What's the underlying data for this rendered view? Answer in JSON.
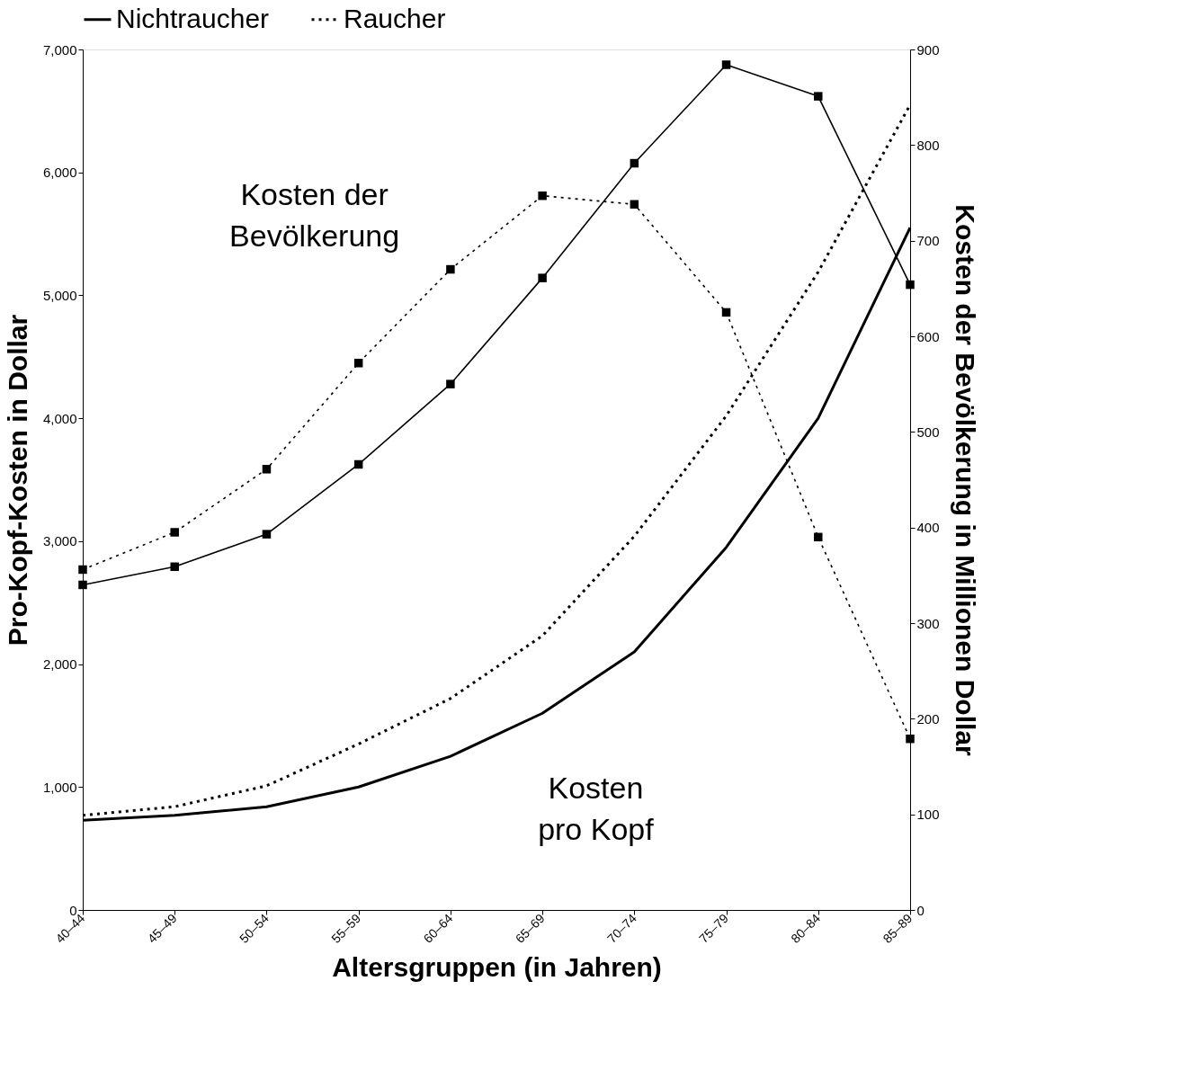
{
  "chart_data": {
    "type": "line",
    "categories": [
      "40–44",
      "45–49",
      "50–54",
      "55–59",
      "60–64",
      "65–69",
      "70–74",
      "75–79",
      "80–84",
      "85–89"
    ],
    "series": [
      {
        "name": "Nichtraucher",
        "color": "#000000",
        "line_style": "solid",
        "marker": "none",
        "values": [
          730,
          770,
          840,
          1000,
          1250,
          1600,
          2100,
          2950,
          4000,
          5550
        ]
      },
      {
        "name": "Raucher",
        "color": "#000000",
        "line_style": "dotted",
        "marker": "none",
        "values": [
          770,
          840,
          1010,
          1350,
          1720,
          2230,
          3040,
          4020,
          5190,
          6550
        ]
      },
      {
        "color": "#000000",
        "line_style": "solid",
        "marker": "square",
        "axis": "y2",
        "values": [
          340,
          359,
          393,
          466,
          550,
          661,
          781,
          884,
          851,
          654
        ]
      },
      {
        "color": "#000000",
        "line_style": "dotted",
        "marker": "square",
        "axis": "y2",
        "values": [
          356,
          395,
          461,
          572,
          670,
          747,
          738,
          625,
          390,
          179
        ]
      }
    ],
    "xlabel": "Altersgruppen (in Jahren)",
    "ylabel": "Pro-Kopf-Kosten in Dollar",
    "y2label": "Kosten der Bevölkerung in Millionen Dollar",
    "ylim": [
      0,
      7000
    ],
    "yticks": [
      0,
      {
        "value": 1000,
        "label": "1,000"
      },
      {
        "value": 2000,
        "label": "2,000"
      },
      {
        "value": 3000,
        "label": "3,000"
      },
      {
        "value": 4000,
        "label": "4,000"
      },
      {
        "value": 5000,
        "label": "5,000"
      },
      {
        "value": 6000,
        "label": "6,000"
      },
      {
        "value": 7000,
        "label": "7,000"
      }
    ],
    "y2lim": [
      0,
      900
    ],
    "y2ticks": [
      0,
      100,
      200,
      300,
      400,
      500,
      600,
      700,
      800,
      900
    ],
    "annotations": [
      "Kosten der\nBevölkerung",
      "Kosten\npro Kopf"
    ],
    "legend": "top",
    "grid": false
  }
}
